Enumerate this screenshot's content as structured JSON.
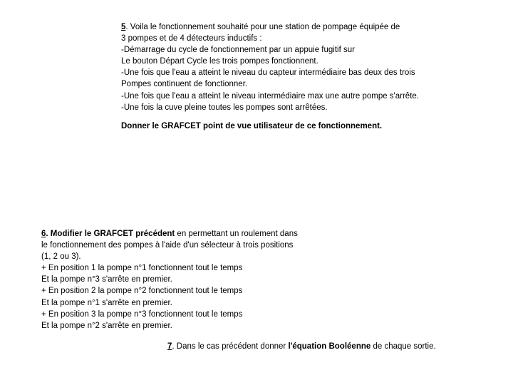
{
  "q5": {
    "num": "5",
    "line1a": ". Voila le fonctionnement souhaité pour une station de pompage équipée de",
    "line2": "3 pompes et de 4 détecteurs inductifs :",
    "line3": "-Démarrage du cycle de fonctionnement par un appuie fugitif sur",
    "line4": "Le bouton Départ Cycle les trois pompes fonctionnent.",
    "line5": "-Une fois que l'eau a atteint le niveau du capteur intermédiaire bas deux des trois",
    "line6": "Pompes continuent de fonctionner.",
    "line7": "-Une fois que l'eau a atteint le niveau intermédiaire max une autre pompe s'arrête.",
    "line8": "-Une fois la cuve pleine toutes les pompes sont arrêtées.",
    "task": "Donner le GRAFCET point de vue utilisateur de ce fonctionnement."
  },
  "q6": {
    "num": "6",
    "lead": ". Modifier le GRAFCET précédent",
    "line1b": " en permettant un roulement dans",
    "line2": "le fonctionnement des pompes à l'aide d'un sélecteur à trois positions",
    "line3": "(1, 2 ou 3).",
    "line4": "+ En position 1 la pompe n°1 fonctionnent tout le temps",
    "line5": "Et la pompe n°3 s'arrête en premier.",
    "line6": "+ En position 2 la pompe n°2 fonctionnent tout le temps",
    "line7": "Et la pompe n°1 s'arrête en premier.",
    "line8": "+ En position 3 la pompe n°3 fonctionnent tout le temps",
    "line9": "Et la pompe n°2 s'arrête en premier."
  },
  "q7": {
    "num": "7",
    "text1": ". Dans le cas précédent donner ",
    "bold": "l'équation Booléenne",
    "text2": " de chaque sortie."
  }
}
